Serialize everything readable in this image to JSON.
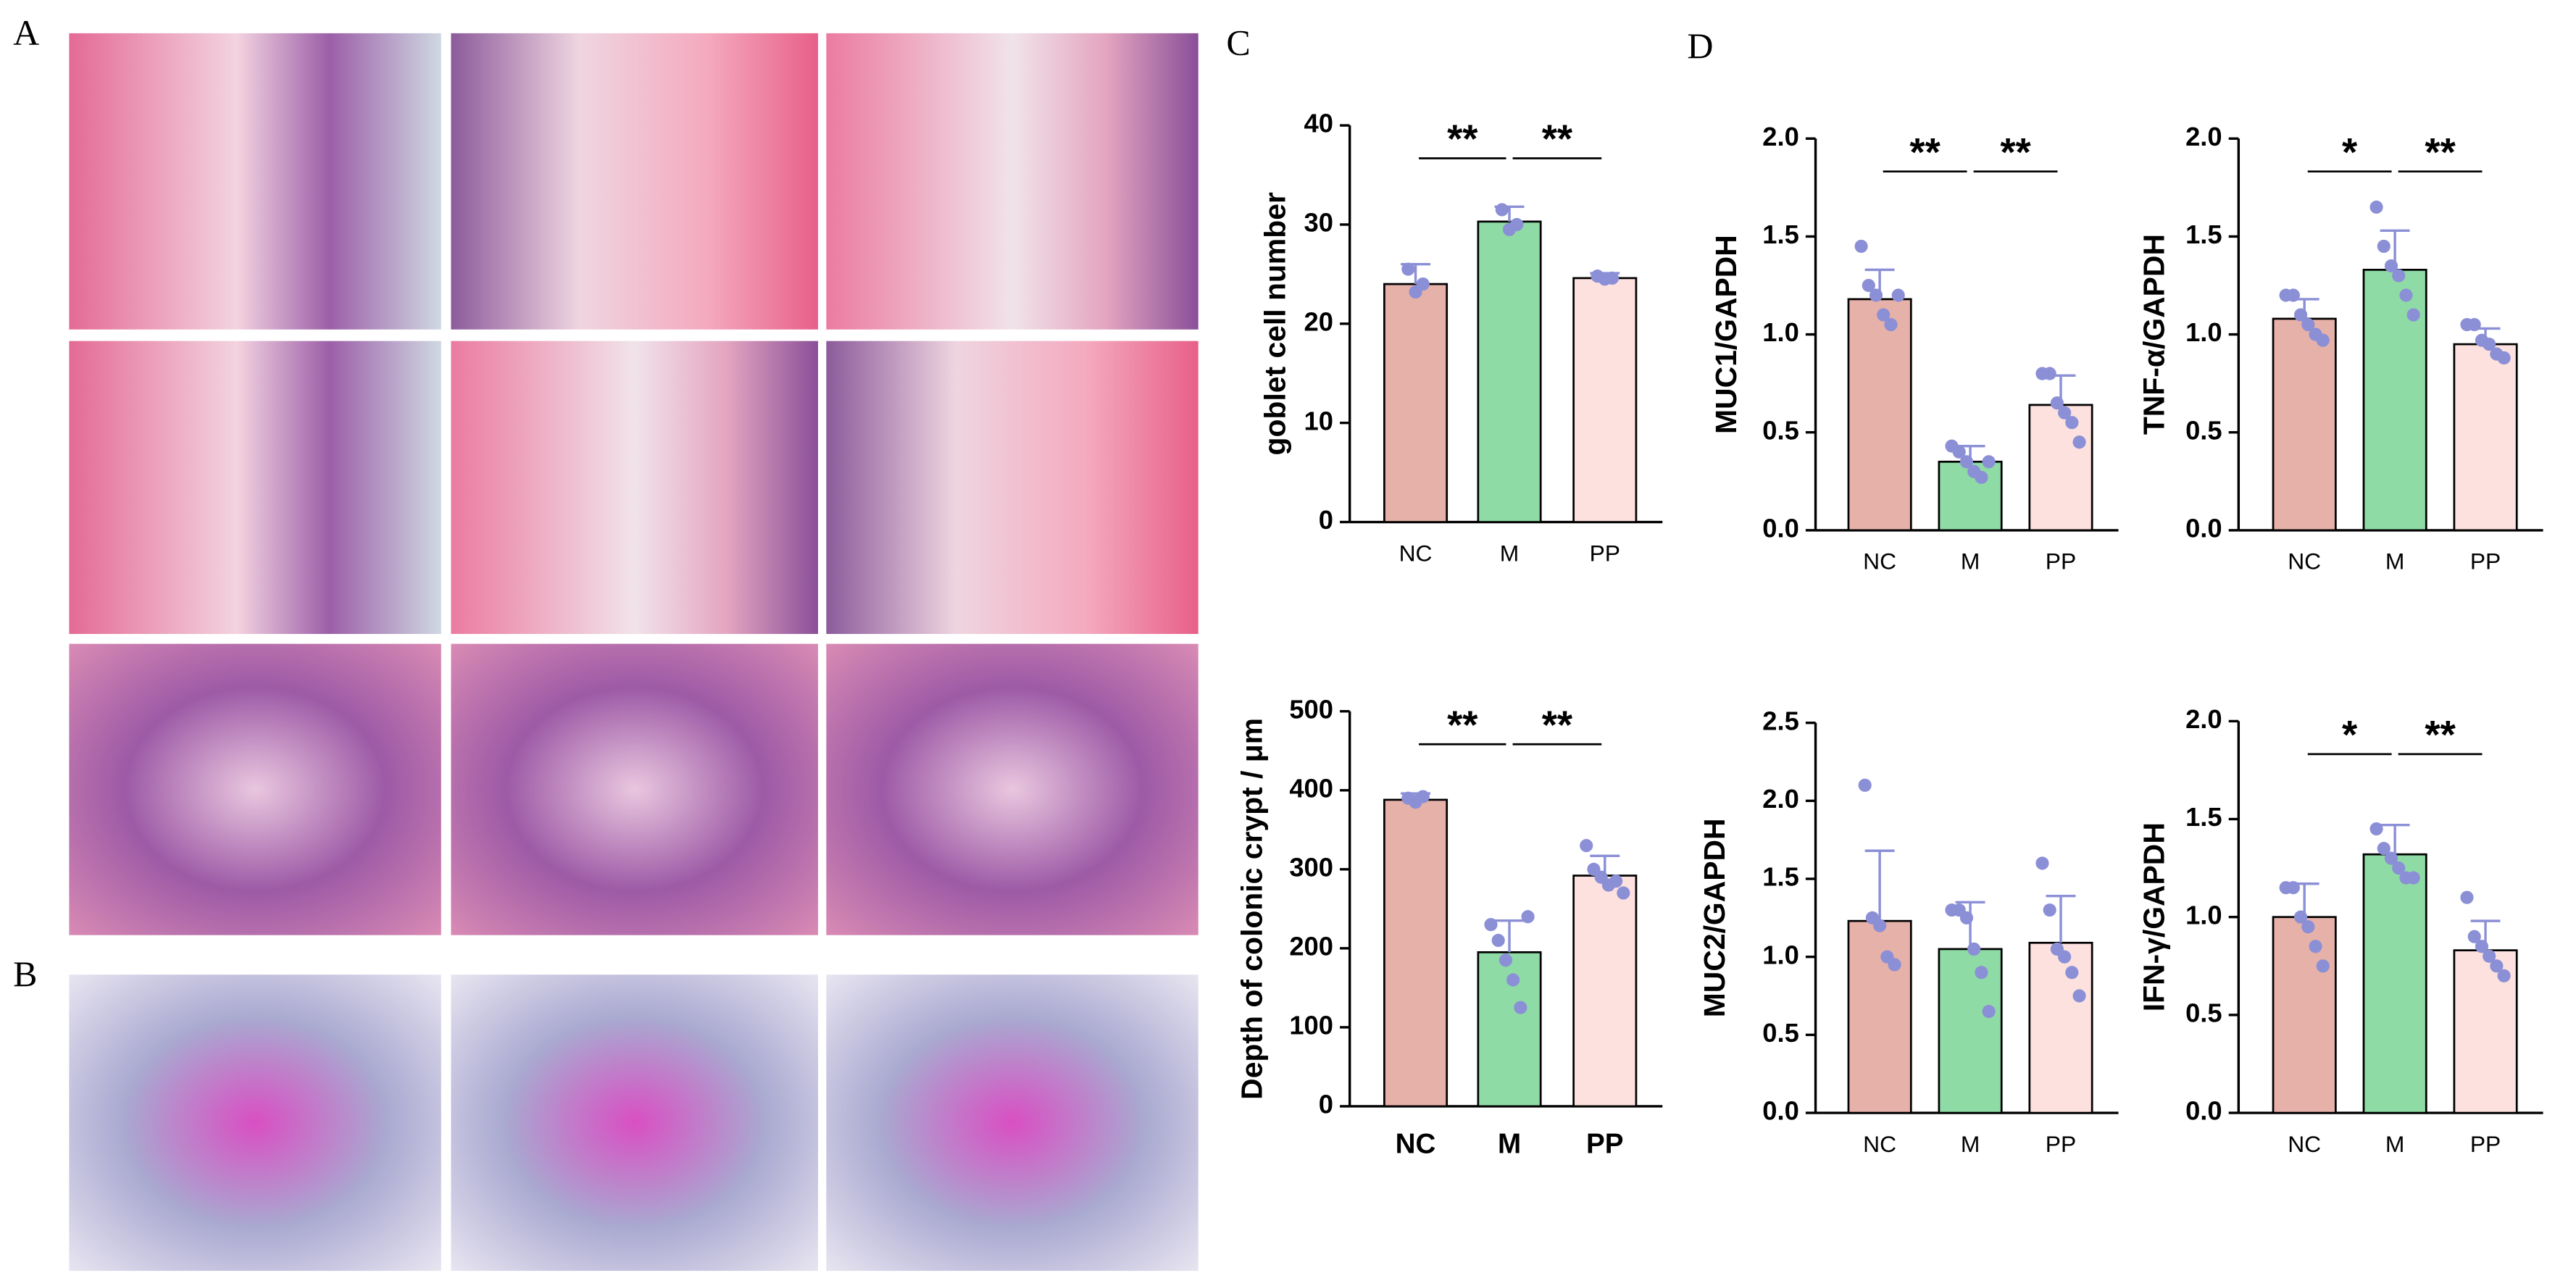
{
  "panel_labels": [
    "A",
    "B",
    "C",
    "D"
  ],
  "chart_data": [
    {
      "type": "bar",
      "y_label": "goblet cell number",
      "categories": [
        "NC",
        "M",
        "PP"
      ],
      "values": [
        24,
        30.3,
        24.6
      ],
      "errors": [
        2,
        1.5,
        0.5
      ],
      "points": [
        [
          25.5,
          23.2,
          24
        ],
        [
          31.5,
          29.5,
          30
        ],
        [
          24.8,
          24.5,
          24.6
        ]
      ],
      "colors": [
        "#e6b1a9",
        "#8edba6",
        "#fde1de"
      ],
      "point_color": "#8b8fd6",
      "ylim": [
        0,
        40
      ],
      "yticks": [
        0,
        10,
        20,
        30,
        40
      ],
      "significance": [
        "**",
        "**"
      ]
    },
    {
      "type": "bar",
      "y_label": "Depth of colonic crypt / μm",
      "categories": [
        "NC",
        "M",
        "PP"
      ],
      "values": [
        388,
        195,
        292
      ],
      "errors": [
        8,
        40,
        25
      ],
      "points": [
        [
          390,
          385,
          392
        ],
        [
          230,
          210,
          185,
          160,
          125,
          240
        ],
        [
          330,
          300,
          290,
          280,
          285,
          270
        ]
      ],
      "colors": [
        "#e6b1a9",
        "#8edba6",
        "#fde1de"
      ],
      "point_color": "#8b8fd6",
      "ylim": [
        0,
        500
      ],
      "yticks": [
        0,
        100,
        200,
        300,
        400,
        500
      ],
      "significance": [
        "**",
        "**"
      ]
    },
    {
      "type": "bar",
      "y_label": "MUC1/GAPDH",
      "categories": [
        "NC",
        "M",
        "PP"
      ],
      "values": [
        1.18,
        0.35,
        0.64
      ],
      "errors": [
        0.15,
        0.08,
        0.15
      ],
      "points": [
        [
          1.45,
          1.25,
          1.2,
          1.1,
          1.05,
          1.2
        ],
        [
          0.43,
          0.4,
          0.35,
          0.3,
          0.27,
          0.35
        ],
        [
          0.8,
          0.8,
          0.65,
          0.6,
          0.55,
          0.45
        ]
      ],
      "colors": [
        "#e6b1a9",
        "#8edba6",
        "#fde1de"
      ],
      "point_color": "#8b8fd6",
      "ylim": [
        0,
        2
      ],
      "yticks": [
        {
          "value": 0,
          "label": "0.0"
        },
        {
          "value": 0.5,
          "label": "0.5"
        },
        {
          "value": 1,
          "label": "1.0"
        },
        {
          "value": 1.5,
          "label": "1.5"
        },
        {
          "value": 2,
          "label": "2.0"
        }
      ],
      "significance": [
        "**",
        "**"
      ]
    },
    {
      "type": "bar",
      "y_label": "TNF-α/GAPDH",
      "categories": [
        "NC",
        "M",
        "PP"
      ],
      "values": [
        1.08,
        1.33,
        0.95
      ],
      "errors": [
        0.1,
        0.2,
        0.08
      ],
      "points": [
        [
          1.2,
          1.2,
          1.1,
          1.05,
          1.0,
          0.97
        ],
        [
          1.65,
          1.45,
          1.35,
          1.3,
          1.2,
          1.1
        ],
        [
          1.05,
          1.05,
          0.97,
          0.95,
          0.9,
          0.88
        ]
      ],
      "colors": [
        "#e6b1a9",
        "#8edba6",
        "#fde1de"
      ],
      "point_color": "#8b8fd6",
      "ylim": [
        0,
        2
      ],
      "yticks": [
        {
          "value": 0,
          "label": "0.0"
        },
        {
          "value": 0.5,
          "label": "0.5"
        },
        {
          "value": 1,
          "label": "1.0"
        },
        {
          "value": 1.5,
          "label": "1.5"
        },
        {
          "value": 2,
          "label": "2.0"
        }
      ],
      "significance": [
        "*",
        "**"
      ]
    },
    {
      "type": "bar",
      "y_label": "MUC2/GAPDH",
      "categories": [
        "NC",
        "M",
        "PP"
      ],
      "values": [
        1.23,
        1.05,
        1.09
      ],
      "errors": [
        0.45,
        0.3,
        0.3
      ],
      "points": [
        [
          2.1,
          1.25,
          1.2,
          1.0,
          0.95
        ],
        [
          1.3,
          1.3,
          1.25,
          1.05,
          0.9,
          0.65
        ],
        [
          1.6,
          1.3,
          1.05,
          1.0,
          0.9,
          0.75
        ]
      ],
      "colors": [
        "#e6b1a9",
        "#8edba6",
        "#fde1de"
      ],
      "point_color": "#8b8fd6",
      "ylim": [
        0,
        2.5
      ],
      "yticks": [
        {
          "value": 0,
          "label": "0.0"
        },
        {
          "value": 0.5,
          "label": "0.5"
        },
        {
          "value": 1,
          "label": "1.0"
        },
        {
          "value": 1.5,
          "label": "1.5"
        },
        {
          "value": 2,
          "label": "2.0"
        },
        {
          "value": 2.5,
          "label": "2.5"
        }
      ]
    },
    {
      "type": "bar",
      "y_label": "IFN-γ/GAPDH",
      "categories": [
        "NC",
        "M",
        "PP"
      ],
      "values": [
        1.0,
        1.32,
        0.83
      ],
      "errors": [
        0.17,
        0.15,
        0.15
      ],
      "points": [
        [
          1.15,
          1.15,
          1.0,
          0.95,
          0.85,
          0.75
        ],
        [
          1.45,
          1.35,
          1.3,
          1.25,
          1.2,
          1.2
        ],
        [
          1.1,
          0.9,
          0.85,
          0.8,
          0.75,
          0.7
        ]
      ],
      "colors": [
        "#e6b1a9",
        "#8edba6",
        "#fde1de"
      ],
      "point_color": "#8b8fd6",
      "ylim": [
        0,
        2
      ],
      "yticks": [
        {
          "value": 0,
          "label": "0.0"
        },
        {
          "value": 0.5,
          "label": "0.5"
        },
        {
          "value": 1,
          "label": "1.0"
        },
        {
          "value": 1.5,
          "label": "1.5"
        },
        {
          "value": 2,
          "label": "2.0"
        }
      ],
      "significance": [
        "*",
        "**"
      ]
    }
  ]
}
